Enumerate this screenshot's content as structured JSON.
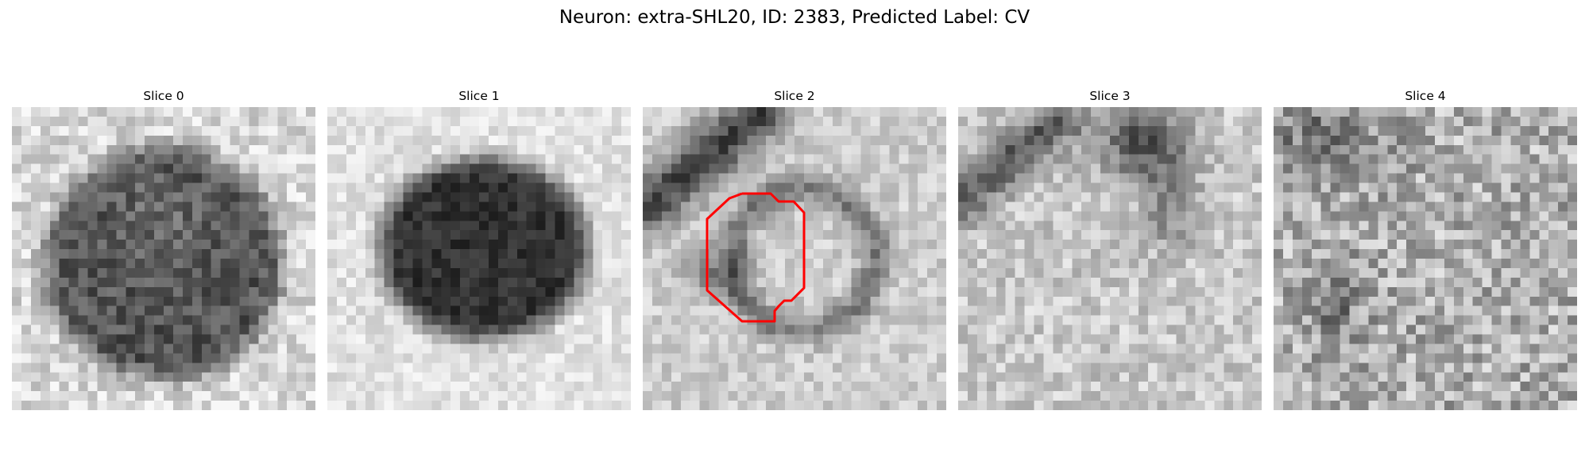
{
  "figure": {
    "title": "Neuron: extra-SHL20, ID: 2383, Predicted Label: CV"
  },
  "slices": [
    {
      "label": "Slice 0",
      "pattern": "dark-blob-large"
    },
    {
      "label": "Slice 1",
      "pattern": "dark-blob-compact"
    },
    {
      "label": "Slice 2",
      "pattern": "ring-membrane",
      "has_contour": true
    },
    {
      "label": "Slice 3",
      "pattern": "light-with-top-band"
    },
    {
      "label": "Slice 4",
      "pattern": "noisy-texture"
    }
  ],
  "contour": {
    "color": "#ff0000"
  }
}
